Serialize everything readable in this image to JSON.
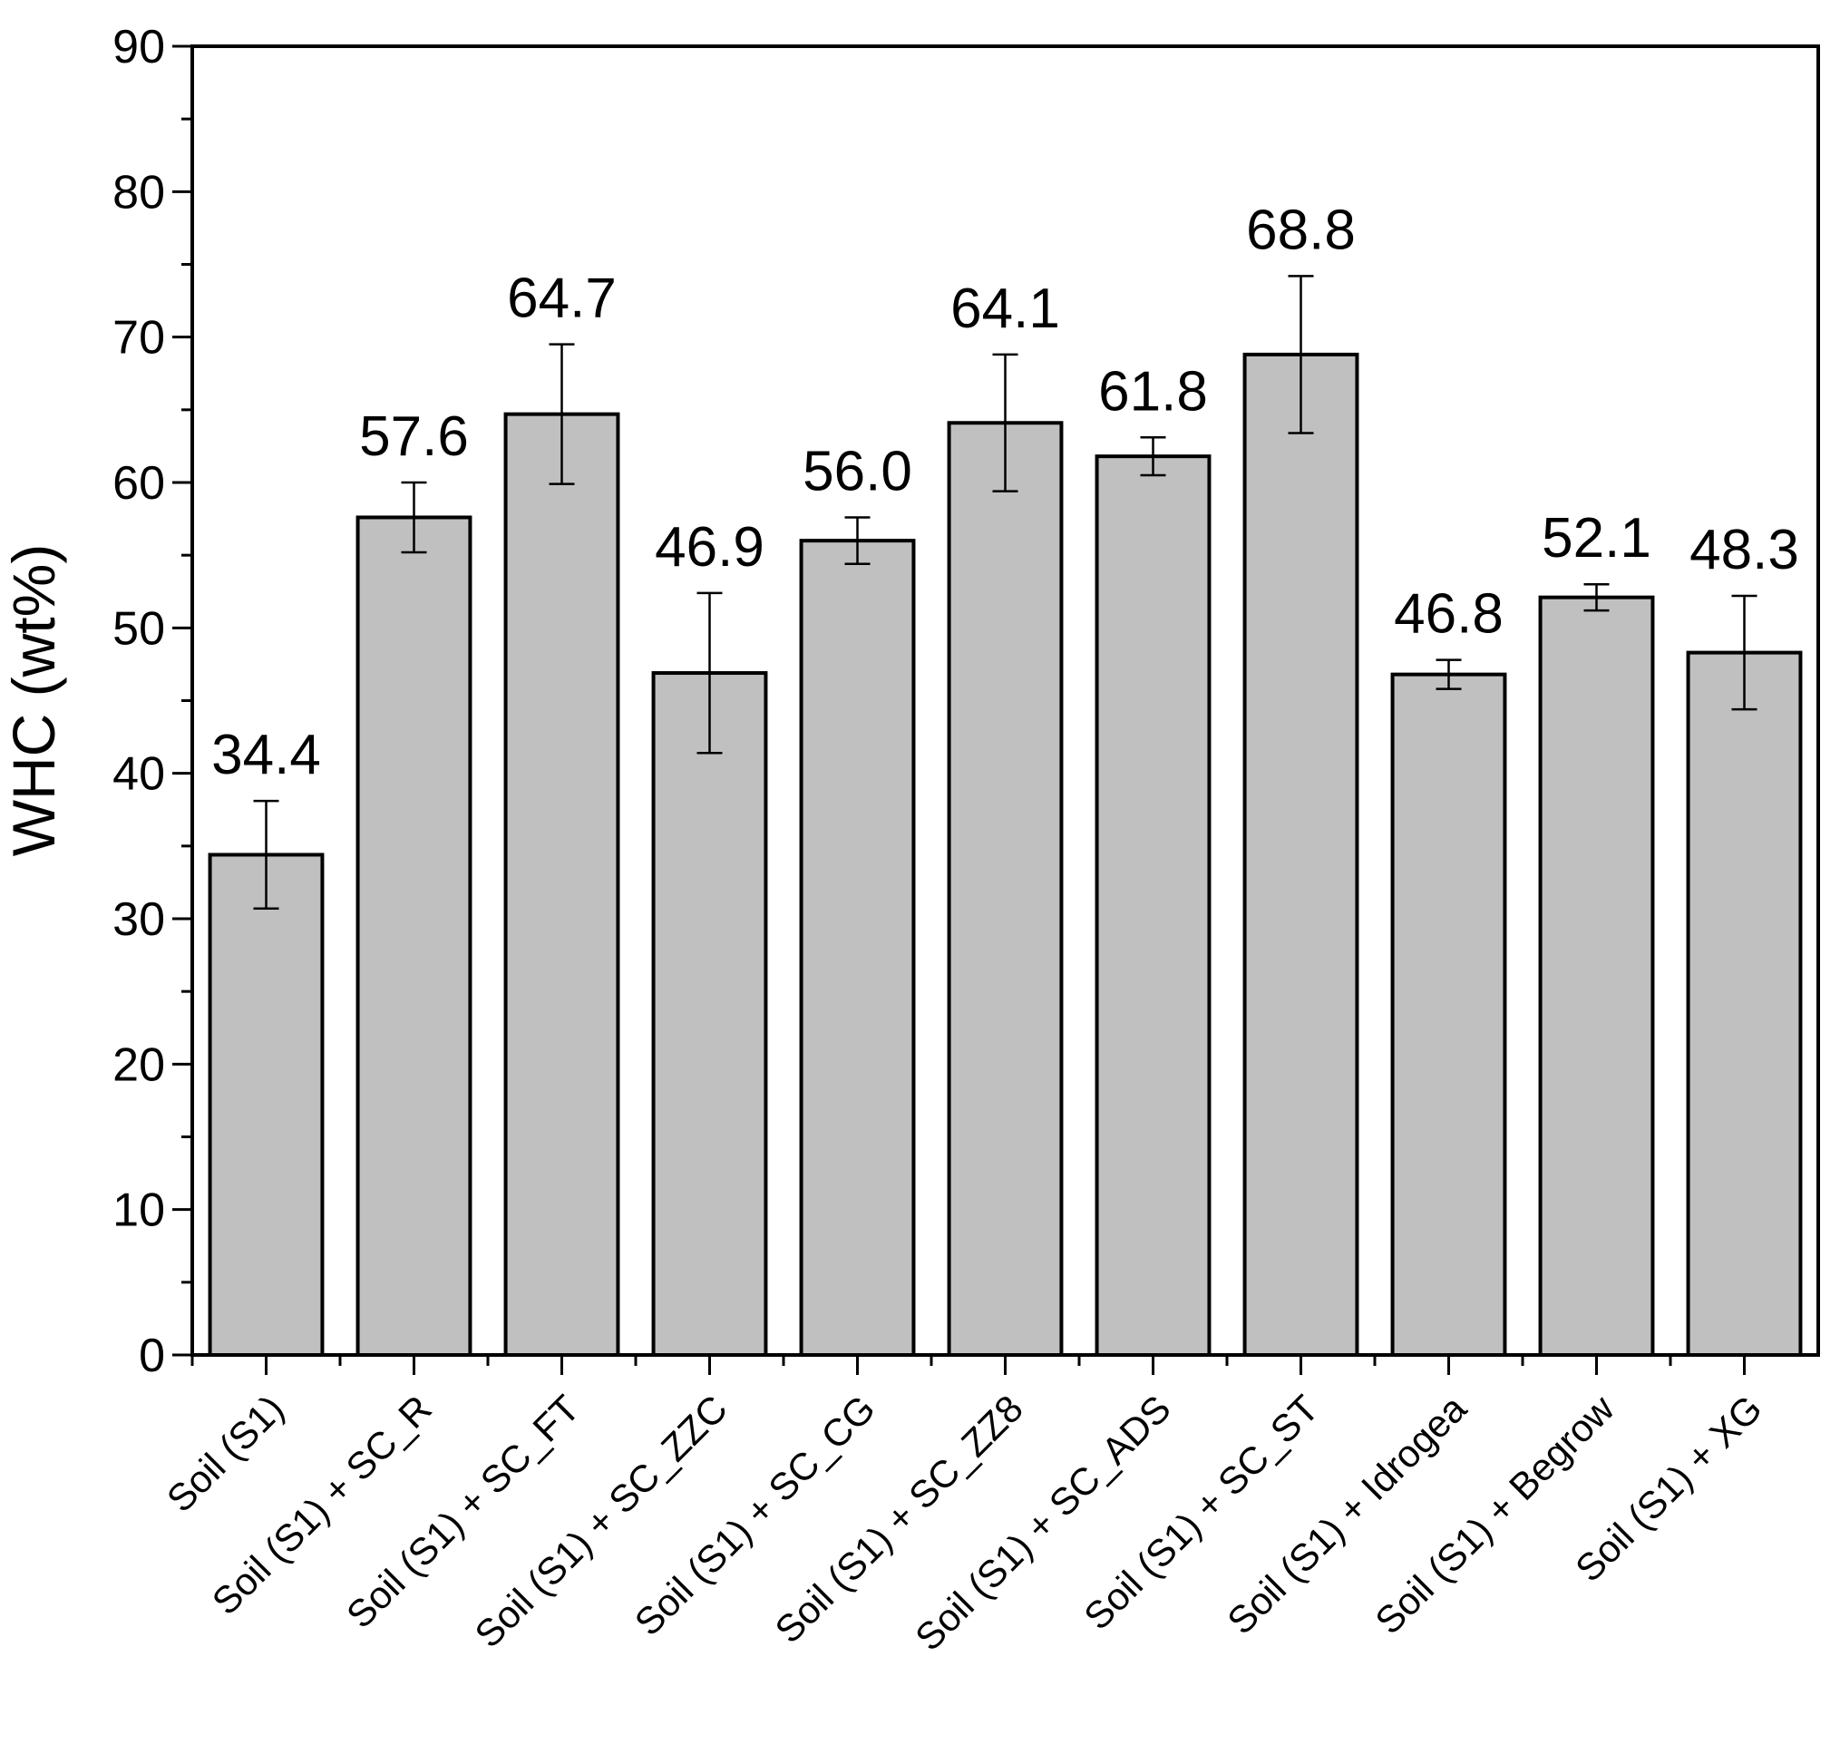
{
  "chart_data": {
    "type": "bar",
    "y_label": "WHC (wt%)",
    "categories": [
      "Soil (S1)",
      "Soil (S1) + SC_R",
      "Soil (S1) + SC_FT",
      "Soil (S1) + SC_ZZC",
      "Soil (S1) + SC_CG",
      "Soil (S1) + SC_ZZ8",
      "Soil (S1) + SC_ADS",
      "Soil (S1) + SC_ST",
      "Soil (S1) + Idrogea",
      "Soil (S1) + Begrow",
      "Soil (S1) + XG"
    ],
    "values": [
      34.4,
      57.6,
      64.7,
      46.9,
      56.0,
      64.1,
      61.8,
      68.8,
      46.8,
      52.1,
      48.3
    ],
    "value_labels": [
      "34.4",
      "57.6",
      "64.7",
      "46.9",
      "56.0",
      "64.1",
      "61.8",
      "68.8",
      "46.8",
      "52.1",
      "48.3"
    ],
    "errors": [
      3.7,
      2.4,
      4.8,
      5.5,
      1.6,
      4.7,
      1.3,
      5.4,
      1.0,
      0.9,
      3.9
    ],
    "color": "#c0c0c0",
    "ylim": [
      0,
      90
    ],
    "yticks": [
      0,
      10,
      20,
      30,
      40,
      50,
      60,
      70,
      80,
      90
    ],
    "grid": false
  }
}
